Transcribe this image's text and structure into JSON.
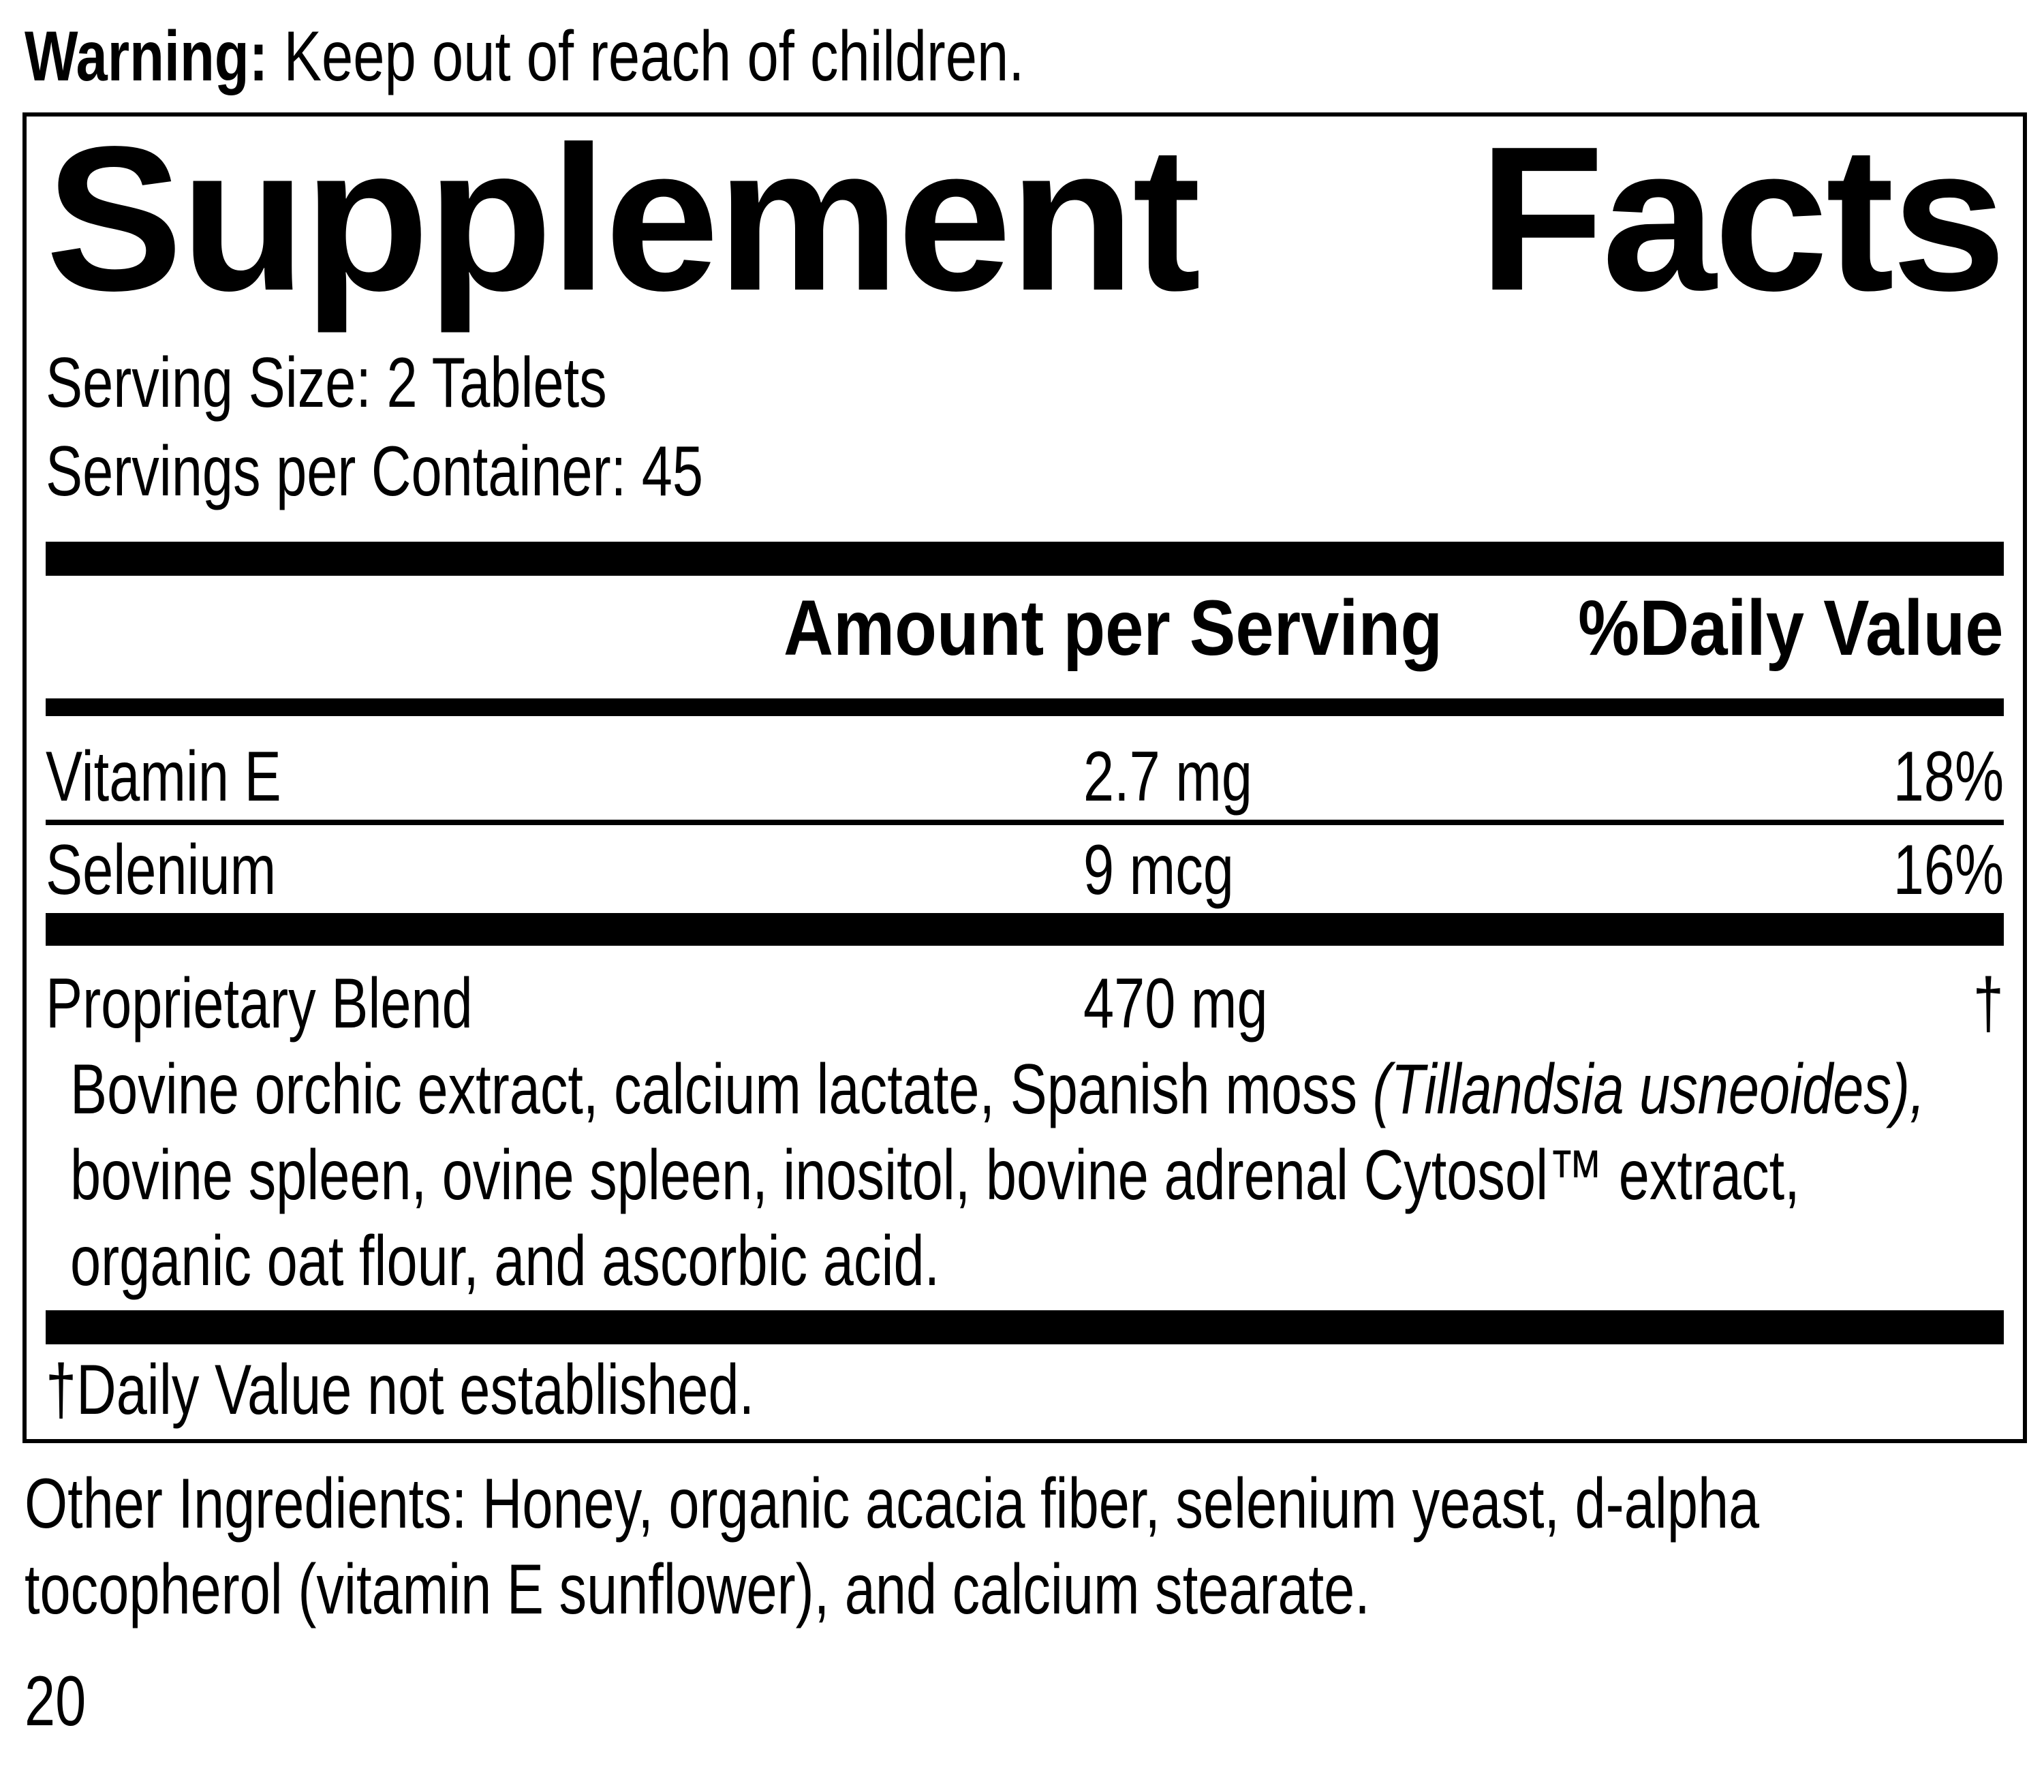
{
  "colors": {
    "ink": "#000000",
    "paper": "#ffffff"
  },
  "warning": {
    "label": "Warning:",
    "text": " Keep out of reach of children."
  },
  "panel": {
    "title": {
      "word1": "Supplement",
      "word2": "Facts"
    },
    "serving_size": "Serving Size: 2 Tablets",
    "servings_per_container": "Servings per Container: 45",
    "columns": {
      "amount_header": "Amount per Serving",
      "daily_value_header": "%Daily Value"
    },
    "rows": [
      {
        "name": "Vitamin E",
        "amount": "2.7 mg",
        "daily_value": "18%"
      },
      {
        "name": "Selenium",
        "amount": "9 mcg",
        "daily_value": "16%"
      }
    ],
    "blend": {
      "name": "Proprietary Blend",
      "amount": "470 mg",
      "daily_value": "†",
      "description": [
        {
          "text": "Bovine orchic extract, calcium lactate, Spanish moss ",
          "italic": "(Tillandsia usneoides),"
        },
        {
          "text": "bovine spleen, ovine spleen, inositol, bovine adrenal Cytosol™ extract,",
          "italic": ""
        },
        {
          "text": "organic oat flour, and ascorbic acid.",
          "italic": ""
        }
      ]
    },
    "footnote": "†Daily Value not established."
  },
  "other_ingredients": {
    "lines": [
      "Other Ingredients: Honey, organic acacia fiber, selenium yeast, d-alpha",
      "tocopherol (vitamin E sunflower), and calcium stearate."
    ]
  },
  "page_number": "20"
}
